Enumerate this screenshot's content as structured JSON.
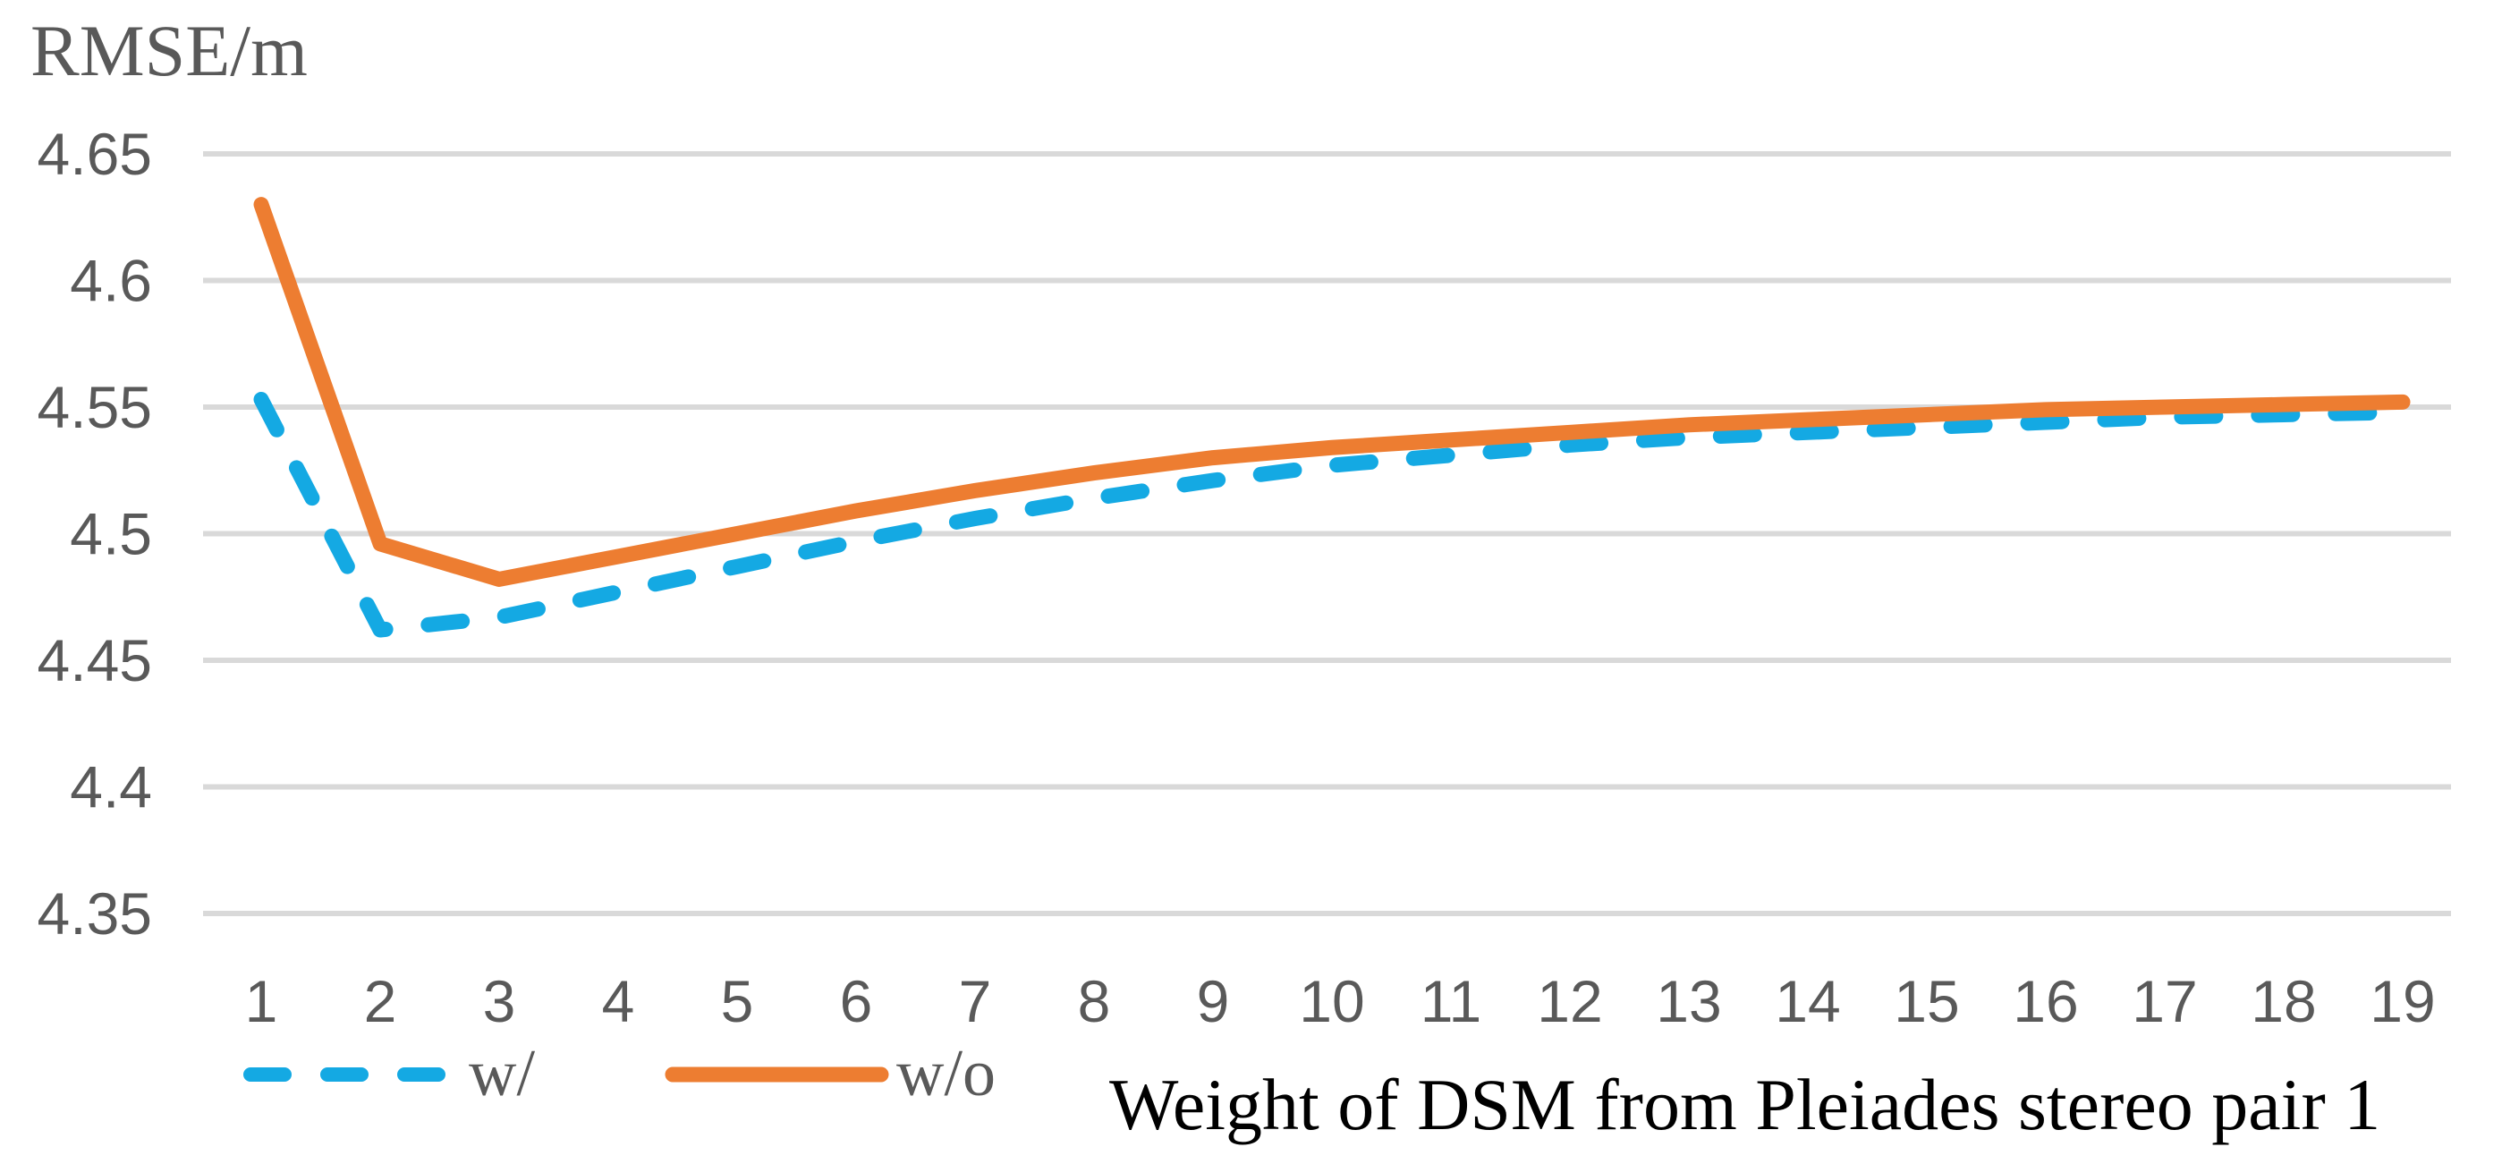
{
  "chart_data": {
    "type": "line",
    "title": "RMSE/m",
    "xlabel": "Weight of DSM from Pleiades stereo pair 1",
    "ylabel": "RMSE/m",
    "x": [
      1,
      2,
      3,
      4,
      5,
      6,
      7,
      8,
      9,
      10,
      11,
      12,
      13,
      14,
      15,
      16,
      17,
      18,
      19
    ],
    "x_tick_labels": [
      "1",
      "2",
      "3",
      "4",
      "5",
      "6",
      "7",
      "8",
      "9",
      "10",
      "11",
      "12",
      "13",
      "14",
      "15",
      "16",
      "17",
      "18",
      "19"
    ],
    "ylim": [
      4.35,
      4.65
    ],
    "y_ticks": [
      {
        "value": 4.65,
        "label": "4.65"
      },
      {
        "value": 4.6,
        "label": "4.6"
      },
      {
        "value": 4.55,
        "label": "4.55"
      },
      {
        "value": 4.5,
        "label": "4.5"
      },
      {
        "value": 4.45,
        "label": "4.45"
      },
      {
        "value": 4.4,
        "label": "4.4"
      },
      {
        "value": 4.35,
        "label": "4.35"
      }
    ],
    "grid": "horizontal",
    "legend_position": "bottom-left",
    "series": [
      {
        "name": "w/",
        "style": "dashed",
        "color": "#14A9E3",
        "values": [
          4.553,
          4.462,
          4.467,
          4.477,
          4.487,
          4.497,
          4.506,
          4.514,
          4.521,
          4.527,
          4.531,
          4.535,
          4.538,
          4.54,
          4.542,
          4.544,
          4.546,
          4.547,
          4.548
        ]
      },
      {
        "name": "w/o",
        "style": "solid",
        "color": "#ED7D31",
        "values": [
          4.63,
          4.496,
          4.482,
          4.491,
          4.5,
          4.509,
          4.517,
          4.524,
          4.53,
          4.534,
          4.537,
          4.54,
          4.543,
          4.545,
          4.547,
          4.549,
          4.55,
          4.551,
          4.552
        ]
      }
    ],
    "colors": {
      "grid": "#D9D9D9",
      "tick_text": "#595959",
      "title_text": "#595959",
      "legend_text": "#595959",
      "axis_title_text": "#000000",
      "background": "#FFFFFF"
    }
  }
}
